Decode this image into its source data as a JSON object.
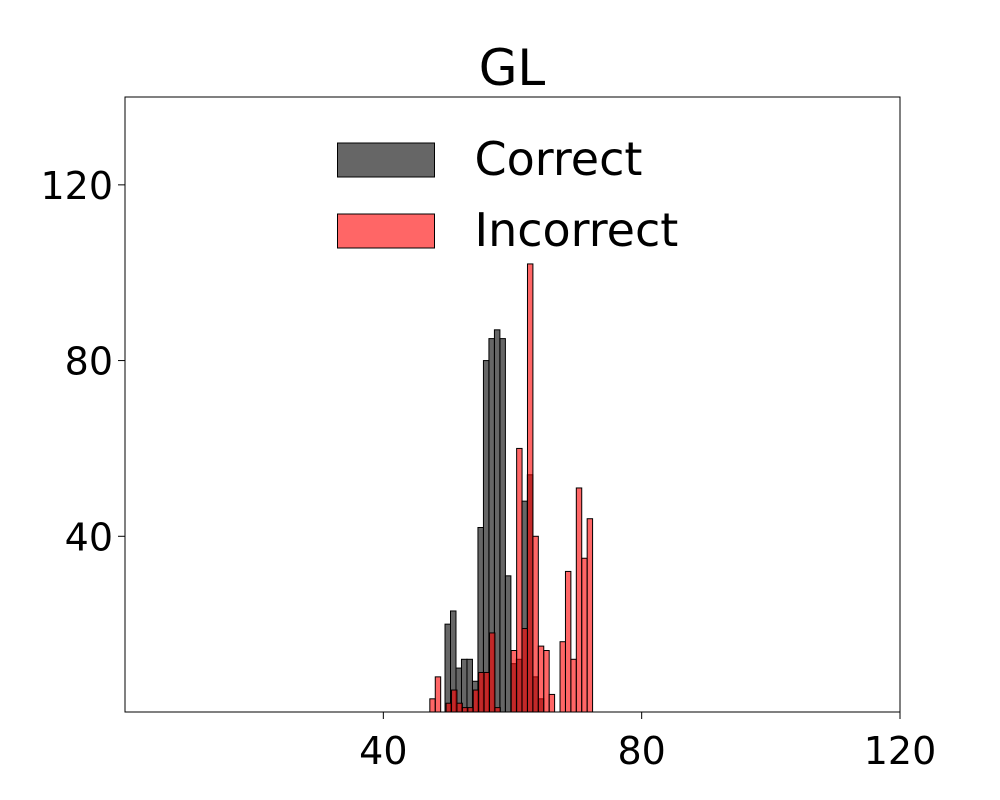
{
  "chart_data": {
    "type": "histogram",
    "title": "GL",
    "xlim": [
      0,
      120
    ],
    "xticks": [
      40,
      80,
      120
    ],
    "ylim": [
      0,
      140
    ],
    "yticks": [
      40,
      80,
      120
    ],
    "legend": "upper center",
    "alpha": 0.6,
    "series": [
      {
        "name": "Correct",
        "color": "#000000",
        "bins": [
          49.55,
          50.4,
          51.25,
          52.1,
          52.95,
          53.8,
          54.65,
          55.5,
          56.35,
          57.2,
          58.05,
          58.9,
          59.75,
          60.6,
          61.45,
          62.3,
          63.15,
          64.0,
          64.85
        ],
        "values": [
          20,
          23,
          10,
          12,
          12,
          7,
          42,
          80,
          85,
          87,
          85,
          31,
          11,
          12,
          48,
          54,
          8,
          3
        ]
      },
      {
        "name": "Incorrect",
        "color": "#ff0000",
        "bins": [
          47.2,
          48.04,
          48.88,
          49.72,
          50.56,
          51.4,
          52.24,
          53.08,
          53.92,
          54.76,
          55.6,
          56.44,
          57.28,
          58.12,
          58.96,
          59.8,
          60.64,
          61.48,
          62.32,
          63.16,
          64.0,
          64.84,
          65.68,
          66.52,
          67.36,
          68.2,
          69.04,
          69.88,
          70.72,
          71.56,
          72.4
        ],
        "values": [
          3,
          8,
          0,
          2,
          5,
          2,
          1,
          1,
          5,
          9,
          9,
          18,
          1,
          0,
          0,
          14,
          60,
          19,
          102,
          40,
          15,
          14,
          4,
          0,
          16,
          32,
          12,
          51,
          35,
          44
        ]
      }
    ]
  }
}
